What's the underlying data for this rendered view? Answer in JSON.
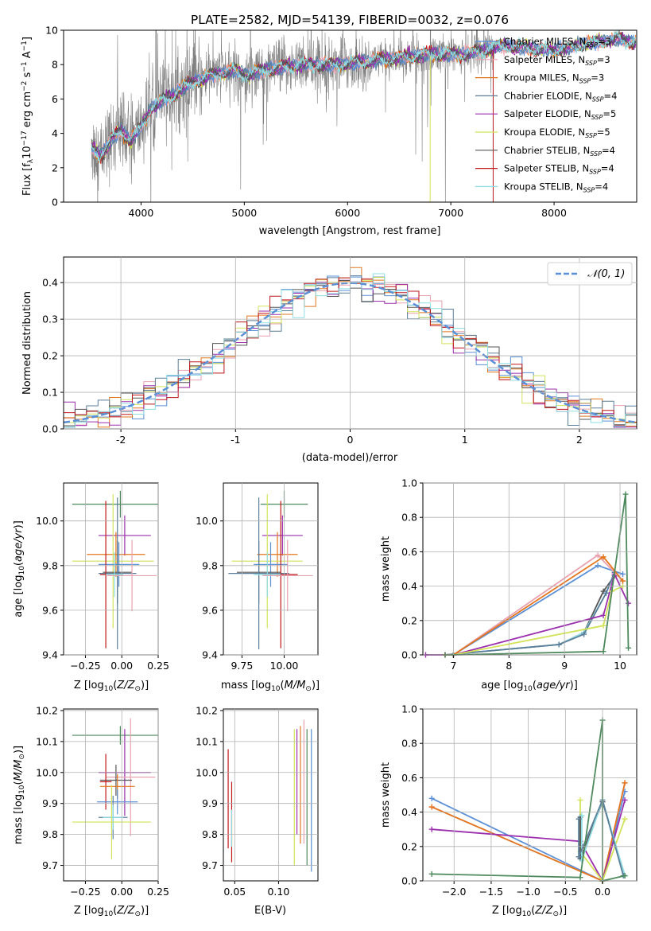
{
  "figure": {
    "title": "PLATE=2582, MJD=54139, FIBERID=0032, z=0.076"
  },
  "colors": {
    "chab_miles": "#5b8fd6",
    "salp_miles": "#e8a2b0",
    "krou_miles": "#e3761e",
    "chab_elodie": "#5b7f9a",
    "salp_elodie": "#9b2fae",
    "krou_elodie": "#d2e35a",
    "chab_stelib": "#555555",
    "salp_stelib": "#c0161a",
    "krou_stelib": "#8fdde3",
    "data": "#808080",
    "normal": "#5b8fd6",
    "extra_green": "#4f8a5e"
  },
  "chart_data": [
    {
      "id": "spectrum",
      "type": "line",
      "title": "PLATE=2582, MJD=54139, FIBERID=0032, z=0.076",
      "xlabel": "wavelength [Angstrom, rest frame]",
      "ylabel": "Flux [f_λ 10^-17 erg cm^-2 s^-1 A^-1]",
      "xlim": [
        3250,
        8800
      ],
      "ylim": [
        0,
        10
      ],
      "xticks": [
        4000,
        5000,
        6000,
        7000,
        8000
      ],
      "yticks": [
        0,
        2,
        4,
        6,
        8,
        10
      ],
      "grid": false,
      "legend": "top-right",
      "legend_entries": [
        {
          "base": "Chabrier MILES, N",
          "sub": "SSP",
          "tail": "=3",
          "color_key": "chab_miles"
        },
        {
          "base": "Salpeter MILES, N",
          "sub": "SSP",
          "tail": "=3",
          "color_key": "salp_miles"
        },
        {
          "base": "Kroupa MILES, N",
          "sub": "SSP",
          "tail": "=3",
          "color_key": "krou_miles"
        },
        {
          "base": "Chabrier ELODIE, N",
          "sub": "SSP",
          "tail": "=4",
          "color_key": "chab_elodie"
        },
        {
          "base": "Salpeter ELODIE, N",
          "sub": "SSP",
          "tail": "=5",
          "color_key": "salp_elodie"
        },
        {
          "base": "Kroupa ELODIE, N",
          "sub": "SSP",
          "tail": "=5",
          "color_key": "krou_elodie"
        },
        {
          "base": "Chabrier STELIB, N",
          "sub": "SSP",
          "tail": "=4",
          "color_key": "chab_stelib"
        },
        {
          "base": "Salpeter STELIB, N",
          "sub": "SSP",
          "tail": "=4",
          "color_key": "salp_stelib"
        },
        {
          "base": "Kroupa STELIB, N",
          "sub": "SSP",
          "tail": "=4",
          "color_key": "krou_stelib"
        }
      ],
      "continuum_knots": [
        [
          3520,
          3.2
        ],
        [
          3600,
          2.7
        ],
        [
          3700,
          3.5
        ],
        [
          3800,
          4.2
        ],
        [
          3900,
          3.6
        ],
        [
          4000,
          4.4
        ],
        [
          4100,
          5.5
        ],
        [
          4300,
          6.2
        ],
        [
          4500,
          7.0
        ],
        [
          4700,
          7.4
        ],
        [
          4900,
          7.7
        ],
        [
          5000,
          7.4
        ],
        [
          5200,
          7.7
        ],
        [
          5400,
          7.9
        ],
        [
          5600,
          8.0
        ],
        [
          5900,
          8.0
        ],
        [
          6200,
          8.2
        ],
        [
          6500,
          8.4
        ],
        [
          6800,
          8.6
        ],
        [
          7100,
          8.6
        ],
        [
          7300,
          8.8
        ],
        [
          7500,
          9.1
        ],
        [
          7700,
          9.0
        ],
        [
          8000,
          8.8
        ],
        [
          8300,
          9.2
        ],
        [
          8600,
          9.5
        ],
        [
          8790,
          9.3
        ]
      ],
      "data_range": [
        3520,
        7420
      ],
      "model_range": [
        3520,
        8790
      ]
    },
    {
      "id": "residuals",
      "type": "histogram",
      "xlabel": "(data-model)/error",
      "ylabel": "Normed distribution",
      "xlim": [
        -2.5,
        2.5
      ],
      "ylim": [
        0,
        0.47
      ],
      "xticks": [
        -2,
        -1,
        0,
        1,
        2
      ],
      "yticks": [
        0.0,
        0.1,
        0.2,
        0.3,
        0.4
      ],
      "grid": true,
      "legend": "top-right",
      "legend_label": "N(0,1)",
      "bin_width": 0.1,
      "normal_curve": {
        "mean": 0,
        "sigma": 1
      }
    },
    {
      "id": "age_vs_Z",
      "type": "errorbar",
      "xlabel": "Z [log10(Z/Z⊙)]",
      "ylabel": "age [log10(age/yr)]",
      "xlim": [
        -0.4,
        0.25
      ],
      "ylim": [
        9.4,
        10.17
      ],
      "xticks": [
        -0.25,
        0.0,
        0.25
      ],
      "xticklabels": [
        "−0.25",
        "0.00",
        "0.25"
      ],
      "yticks": [
        9.4,
        9.6,
        9.8,
        10.0
      ],
      "grid": true,
      "points": [
        {
          "key": "extra_green",
          "x": -0.01,
          "y": 10.075,
          "xerr": 0.33,
          "yerr": 0.06
        },
        {
          "key": "salp_elodie",
          "x": 0.02,
          "y": 9.935,
          "xerr": 0.18,
          "yerr": 0.09
        },
        {
          "key": "krou_miles",
          "x": -0.04,
          "y": 9.85,
          "xerr": 0.2,
          "yerr": 0.1
        },
        {
          "key": "krou_elodie",
          "x": -0.06,
          "y": 9.82,
          "xerr": 0.28,
          "yerr": 0.3
        },
        {
          "key": "chab_miles",
          "x": -0.02,
          "y": 9.805,
          "xerr": 0.14,
          "yerr": 0.1
        },
        {
          "key": "chab_stelib",
          "x": -0.03,
          "y": 9.77,
          "xerr": 0.1,
          "yerr": 0.14
        },
        {
          "key": "chab_elodie",
          "x": -0.03,
          "y": 9.765,
          "xerr": 0.13,
          "yerr": 0.34
        },
        {
          "key": "salp_stelib",
          "x": -0.11,
          "y": 9.76,
          "xerr": 0.04,
          "yerr": 0.33
        },
        {
          "key": "krou_stelib",
          "x": -0.05,
          "y": 9.76,
          "xerr": 0.06,
          "yerr": 0.1
        },
        {
          "key": "salp_miles",
          "x": 0.07,
          "y": 9.755,
          "xerr": 0.17,
          "yerr": 0.16
        }
      ]
    },
    {
      "id": "age_vs_mass",
      "type": "errorbar",
      "xlabel": "mass [log10(M/M⊙)]",
      "xlim": [
        9.64,
        10.2
      ],
      "ylim": [
        9.4,
        10.17
      ],
      "xticks": [
        9.75,
        10.0
      ],
      "xticklabels": [
        "9.75",
        "10.00"
      ],
      "yticks": [
        9.4,
        9.6,
        9.8,
        10.0
      ],
      "grid": true,
      "points": [
        {
          "key": "extra_green",
          "x": 10.0,
          "y": 10.075,
          "xerr": 0.14,
          "yerr": 0.06
        },
        {
          "key": "salp_elodie",
          "x": 9.99,
          "y": 9.935,
          "xerr": 0.12,
          "yerr": 0.09
        },
        {
          "key": "krou_miles",
          "x": 9.96,
          "y": 9.85,
          "xerr": 0.12,
          "yerr": 0.1
        },
        {
          "key": "krou_elodie",
          "x": 9.9,
          "y": 9.82,
          "xerr": 0.21,
          "yerr": 0.3
        },
        {
          "key": "chab_miles",
          "x": 9.92,
          "y": 9.805,
          "xerr": 0.1,
          "yerr": 0.1
        },
        {
          "key": "chab_stelib",
          "x": 9.85,
          "y": 9.77,
          "xerr": 0.13,
          "yerr": 0.14
        },
        {
          "key": "chab_elodie",
          "x": 9.85,
          "y": 9.765,
          "xerr": 0.18,
          "yerr": 0.34
        },
        {
          "key": "salp_stelib",
          "x": 9.98,
          "y": 9.76,
          "xerr": 0.1,
          "yerr": 0.33
        },
        {
          "key": "krou_stelib",
          "x": 9.9,
          "y": 9.76,
          "xerr": 0.08,
          "yerr": 0.1
        },
        {
          "key": "salp_miles",
          "x": 10.02,
          "y": 9.755,
          "xerr": 0.15,
          "yerr": 0.16
        }
      ]
    },
    {
      "id": "weight_vs_age",
      "type": "line",
      "xlabel": "age [log10(age/yr)]",
      "ylabel": "mass weight",
      "xlim": [
        6.45,
        10.3
      ],
      "ylim": [
        0,
        1
      ],
      "xticks": [
        7,
        8,
        9,
        10
      ],
      "yticks": [
        0.0,
        0.2,
        0.4,
        0.6,
        0.8,
        1.0
      ],
      "grid": true,
      "series": [
        {
          "key": "chab_stelib",
          "x": [
            6.85,
            8.9,
            9.35,
            9.7,
            9.9
          ],
          "y": [
            0.0,
            0.06,
            0.13,
            0.37,
            0.46
          ]
        },
        {
          "key": "krou_stelib",
          "x": [
            6.85,
            8.9,
            9.35,
            9.75,
            9.9
          ],
          "y": [
            0.0,
            0.06,
            0.13,
            0.36,
            0.48
          ]
        },
        {
          "key": "chab_elodie",
          "x": [
            6.85,
            8.9,
            9.35,
            9.75,
            9.9
          ],
          "y": [
            0.0,
            0.06,
            0.12,
            0.36,
            0.48
          ]
        },
        {
          "key": "salp_elodie",
          "x": [
            6.5,
            7.0,
            9.7,
            9.9,
            10.15
          ],
          "y": [
            0.0,
            0.0,
            0.23,
            0.47,
            0.3
          ]
        },
        {
          "key": "krou_elodie",
          "x": [
            6.85,
            7.0,
            9.7,
            9.85,
            10.05
          ],
          "y": [
            0.0,
            0.0,
            0.17,
            0.37,
            0.4
          ]
        },
        {
          "key": "chab_miles",
          "x": [
            6.85,
            7.0,
            9.6,
            10.05
          ],
          "y": [
            0.0,
            0.0,
            0.52,
            0.47
          ]
        },
        {
          "key": "salp_miles",
          "x": [
            6.85,
            7.0,
            9.6,
            10.05
          ],
          "y": [
            0.0,
            0.0,
            0.58,
            0.43
          ]
        },
        {
          "key": "krou_miles",
          "x": [
            6.85,
            7.0,
            9.7,
            10.05
          ],
          "y": [
            0.0,
            0.0,
            0.57,
            0.43
          ]
        },
        {
          "key": "extra_green",
          "x": [
            6.85,
            7.0,
            9.7,
            10.1,
            10.15
          ],
          "y": [
            0.0,
            0.0,
            0.02,
            0.935,
            0.04
          ]
        }
      ]
    },
    {
      "id": "mass_vs_Z",
      "type": "errorbar",
      "xlabel": "Z [log10(Z/Z⊙)]",
      "ylabel": "mass [log10(M/M⊙)]",
      "xlim": [
        -0.4,
        0.25
      ],
      "ylim": [
        9.65,
        10.205
      ],
      "xticks": [
        -0.25,
        0.0,
        0.25
      ],
      "xticklabels": [
        "−0.25",
        "0.00",
        "0.25"
      ],
      "yticks": [
        9.7,
        9.8,
        9.9,
        10.0,
        10.1,
        10.2
      ],
      "grid": true,
      "points": [
        {
          "key": "extra_green",
          "x": -0.01,
          "y": 10.12,
          "xerr": 0.33,
          "yerr": 0.03
        },
        {
          "key": "salp_elodie",
          "x": 0.02,
          "y": 10.0,
          "xerr": 0.18,
          "yerr": 0.14
        },
        {
          "key": "salp_miles",
          "x": 0.06,
          "y": 9.985,
          "xerr": 0.17,
          "yerr": 0.19
        },
        {
          "key": "chab_stelib",
          "x": -0.04,
          "y": 9.975,
          "xerr": 0.11,
          "yerr": 0.05
        },
        {
          "key": "salp_stelib",
          "x": -0.11,
          "y": 9.97,
          "xerr": 0.04,
          "yerr": 0.09
        },
        {
          "key": "krou_miles",
          "x": -0.03,
          "y": 9.955,
          "xerr": 0.12,
          "yerr": 0.04
        },
        {
          "key": "chab_miles",
          "x": -0.03,
          "y": 9.905,
          "xerr": 0.14,
          "yerr": 0.04
        },
        {
          "key": "chab_elodie",
          "x": -0.06,
          "y": 9.855,
          "xerr": 0.1,
          "yerr": 0.07
        },
        {
          "key": "krou_stelib",
          "x": -0.06,
          "y": 9.855,
          "xerr": 0.07,
          "yerr": 0.04
        },
        {
          "key": "krou_elodie",
          "x": -0.07,
          "y": 9.84,
          "xerr": 0.27,
          "yerr": 0.12
        }
      ]
    },
    {
      "id": "mass_vs_ebv",
      "type": "errorbar",
      "xlabel": "E(B-V)",
      "xlim": [
        0.037,
        0.145
      ],
      "ylim": [
        9.65,
        10.205
      ],
      "xticks": [
        0.05,
        0.1
      ],
      "xticklabels": [
        "0.05",
        "0.10"
      ],
      "yticks": [
        9.7,
        9.8,
        9.9,
        10.0,
        10.1,
        10.2
      ],
      "grid": true,
      "points": [
        {
          "key": "salp_stelib",
          "x": 0.0425,
          "y": 9.915,
          "xerr": 0,
          "yerr": 0.16
        },
        {
          "key": "salp_stelib",
          "x": 0.0465,
          "y": 9.84,
          "xerr": 0,
          "yerr": 0.13
        },
        {
          "key": "krou_stelib",
          "x": 0.0465,
          "y": 9.82,
          "xerr": 0,
          "yerr": 0.06
        },
        {
          "key": "krou_elodie",
          "x": 0.118,
          "y": 9.92,
          "xerr": 0,
          "yerr": 0.22
        },
        {
          "key": "salp_elodie",
          "x": 0.121,
          "y": 9.97,
          "xerr": 0,
          "yerr": 0.17
        },
        {
          "key": "krou_miles",
          "x": 0.125,
          "y": 9.96,
          "xerr": 0,
          "yerr": 0.19
        },
        {
          "key": "salp_miles",
          "x": 0.129,
          "y": 9.97,
          "xerr": 0,
          "yerr": 0.2
        },
        {
          "key": "extra_green",
          "x": 0.1325,
          "y": 9.92,
          "xerr": 0,
          "yerr": 0.22
        },
        {
          "key": "chab_miles",
          "x": 0.1375,
          "y": 9.91,
          "xerr": 0,
          "yerr": 0.23
        }
      ]
    },
    {
      "id": "weight_vs_Z",
      "type": "line",
      "xlabel": "Z [log10(Z/Z⊙)]",
      "ylabel": "mass weight",
      "xlim": [
        -2.42,
        0.46
      ],
      "ylim": [
        0,
        1
      ],
      "xticks": [
        -2.0,
        -1.5,
        -1.0,
        -0.5,
        0.0
      ],
      "xticklabels": [
        "−2.0",
        "−1.5",
        "−1.0",
        "−0.5",
        "0.0"
      ],
      "yticks": [
        0.0,
        0.2,
        0.4,
        0.6,
        0.8,
        1.0
      ],
      "grid": true,
      "series": [
        {
          "key": "chab_miles",
          "x": [
            -2.3,
            0.0,
            0.3
          ],
          "y": [
            0.48,
            0.0,
            0.52
          ]
        },
        {
          "key": "salp_miles",
          "x": [
            -2.3,
            0.0,
            0.3
          ],
          "y": [
            0.43,
            0.0,
            0.57
          ]
        },
        {
          "key": "krou_miles",
          "x": [
            -2.3,
            0.0,
            0.3
          ],
          "y": [
            0.43,
            0.0,
            0.57
          ]
        },
        {
          "key": "salp_elodie",
          "x": [
            -2.3,
            -0.3,
            0.0,
            0.3
          ],
          "y": [
            0.3,
            0.23,
            0.0,
            0.47
          ]
        },
        {
          "key": "krou_elodie",
          "x": [
            -0.3,
            -0.3,
            0.0,
            0.3
          ],
          "y": [
            0.47,
            0.17,
            0.0,
            0.36
          ]
        },
        {
          "key": "chab_stelib",
          "x": [
            -0.3,
            -0.3,
            0.0,
            0.3
          ],
          "y": [
            0.37,
            0.13,
            0.46,
            0.03
          ]
        },
        {
          "key": "krou_stelib",
          "x": [
            -0.28,
            -0.28,
            0.0,
            0.3
          ],
          "y": [
            0.38,
            0.12,
            0.47,
            0.03
          ]
        },
        {
          "key": "chab_elodie",
          "x": [
            -0.32,
            -0.32,
            0.0,
            0.28
          ],
          "y": [
            0.36,
            0.14,
            0.47,
            0.03
          ]
        },
        {
          "key": "extra_green",
          "x": [
            -2.3,
            -0.3,
            0.0,
            0.0,
            0.3
          ],
          "y": [
            0.04,
            0.02,
            0.935,
            0.0,
            0.03
          ]
        }
      ]
    }
  ]
}
